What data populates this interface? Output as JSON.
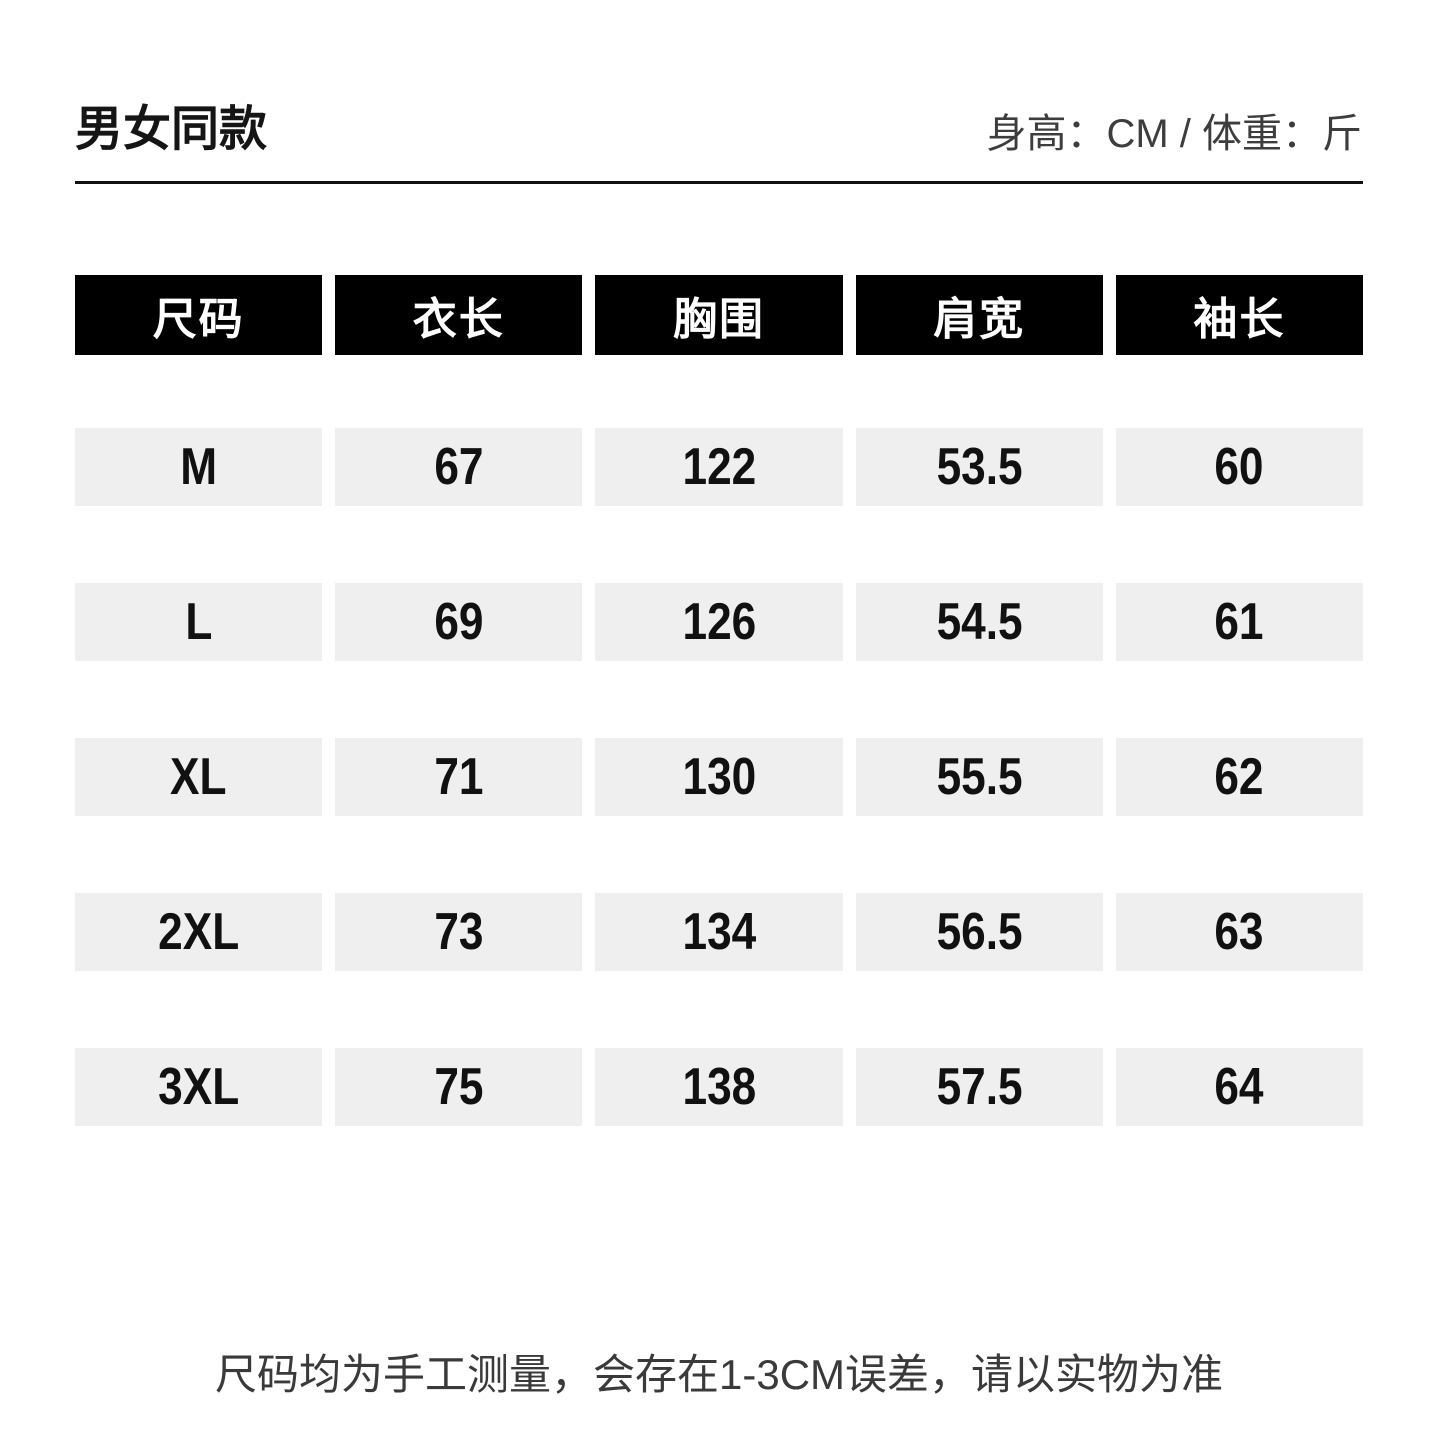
{
  "page": {
    "title": "男女同款",
    "unit_note": "身高：CM / 体重：斤",
    "footer_note": "尺码均为手工测量，会存在1-3CM误差，请以实物为准"
  },
  "size_chart": {
    "headers": [
      "尺码",
      "衣长",
      "胸围",
      "肩宽",
      "袖长"
    ],
    "rows": [
      [
        "M",
        "67",
        "122",
        "53.5",
        "60"
      ],
      [
        "L",
        "69",
        "126",
        "54.5",
        "61"
      ],
      [
        "XL",
        "71",
        "130",
        "55.5",
        "62"
      ],
      [
        "2XL",
        "73",
        "134",
        "56.5",
        "63"
      ],
      [
        "3XL",
        "75",
        "138",
        "57.5",
        "64"
      ]
    ]
  },
  "colors": {
    "header_bg": "#000000",
    "header_text": "#ffffff",
    "cell_bg": "#efefef",
    "primary_text": "#111111",
    "secondary_text": "#3d3d3d"
  }
}
